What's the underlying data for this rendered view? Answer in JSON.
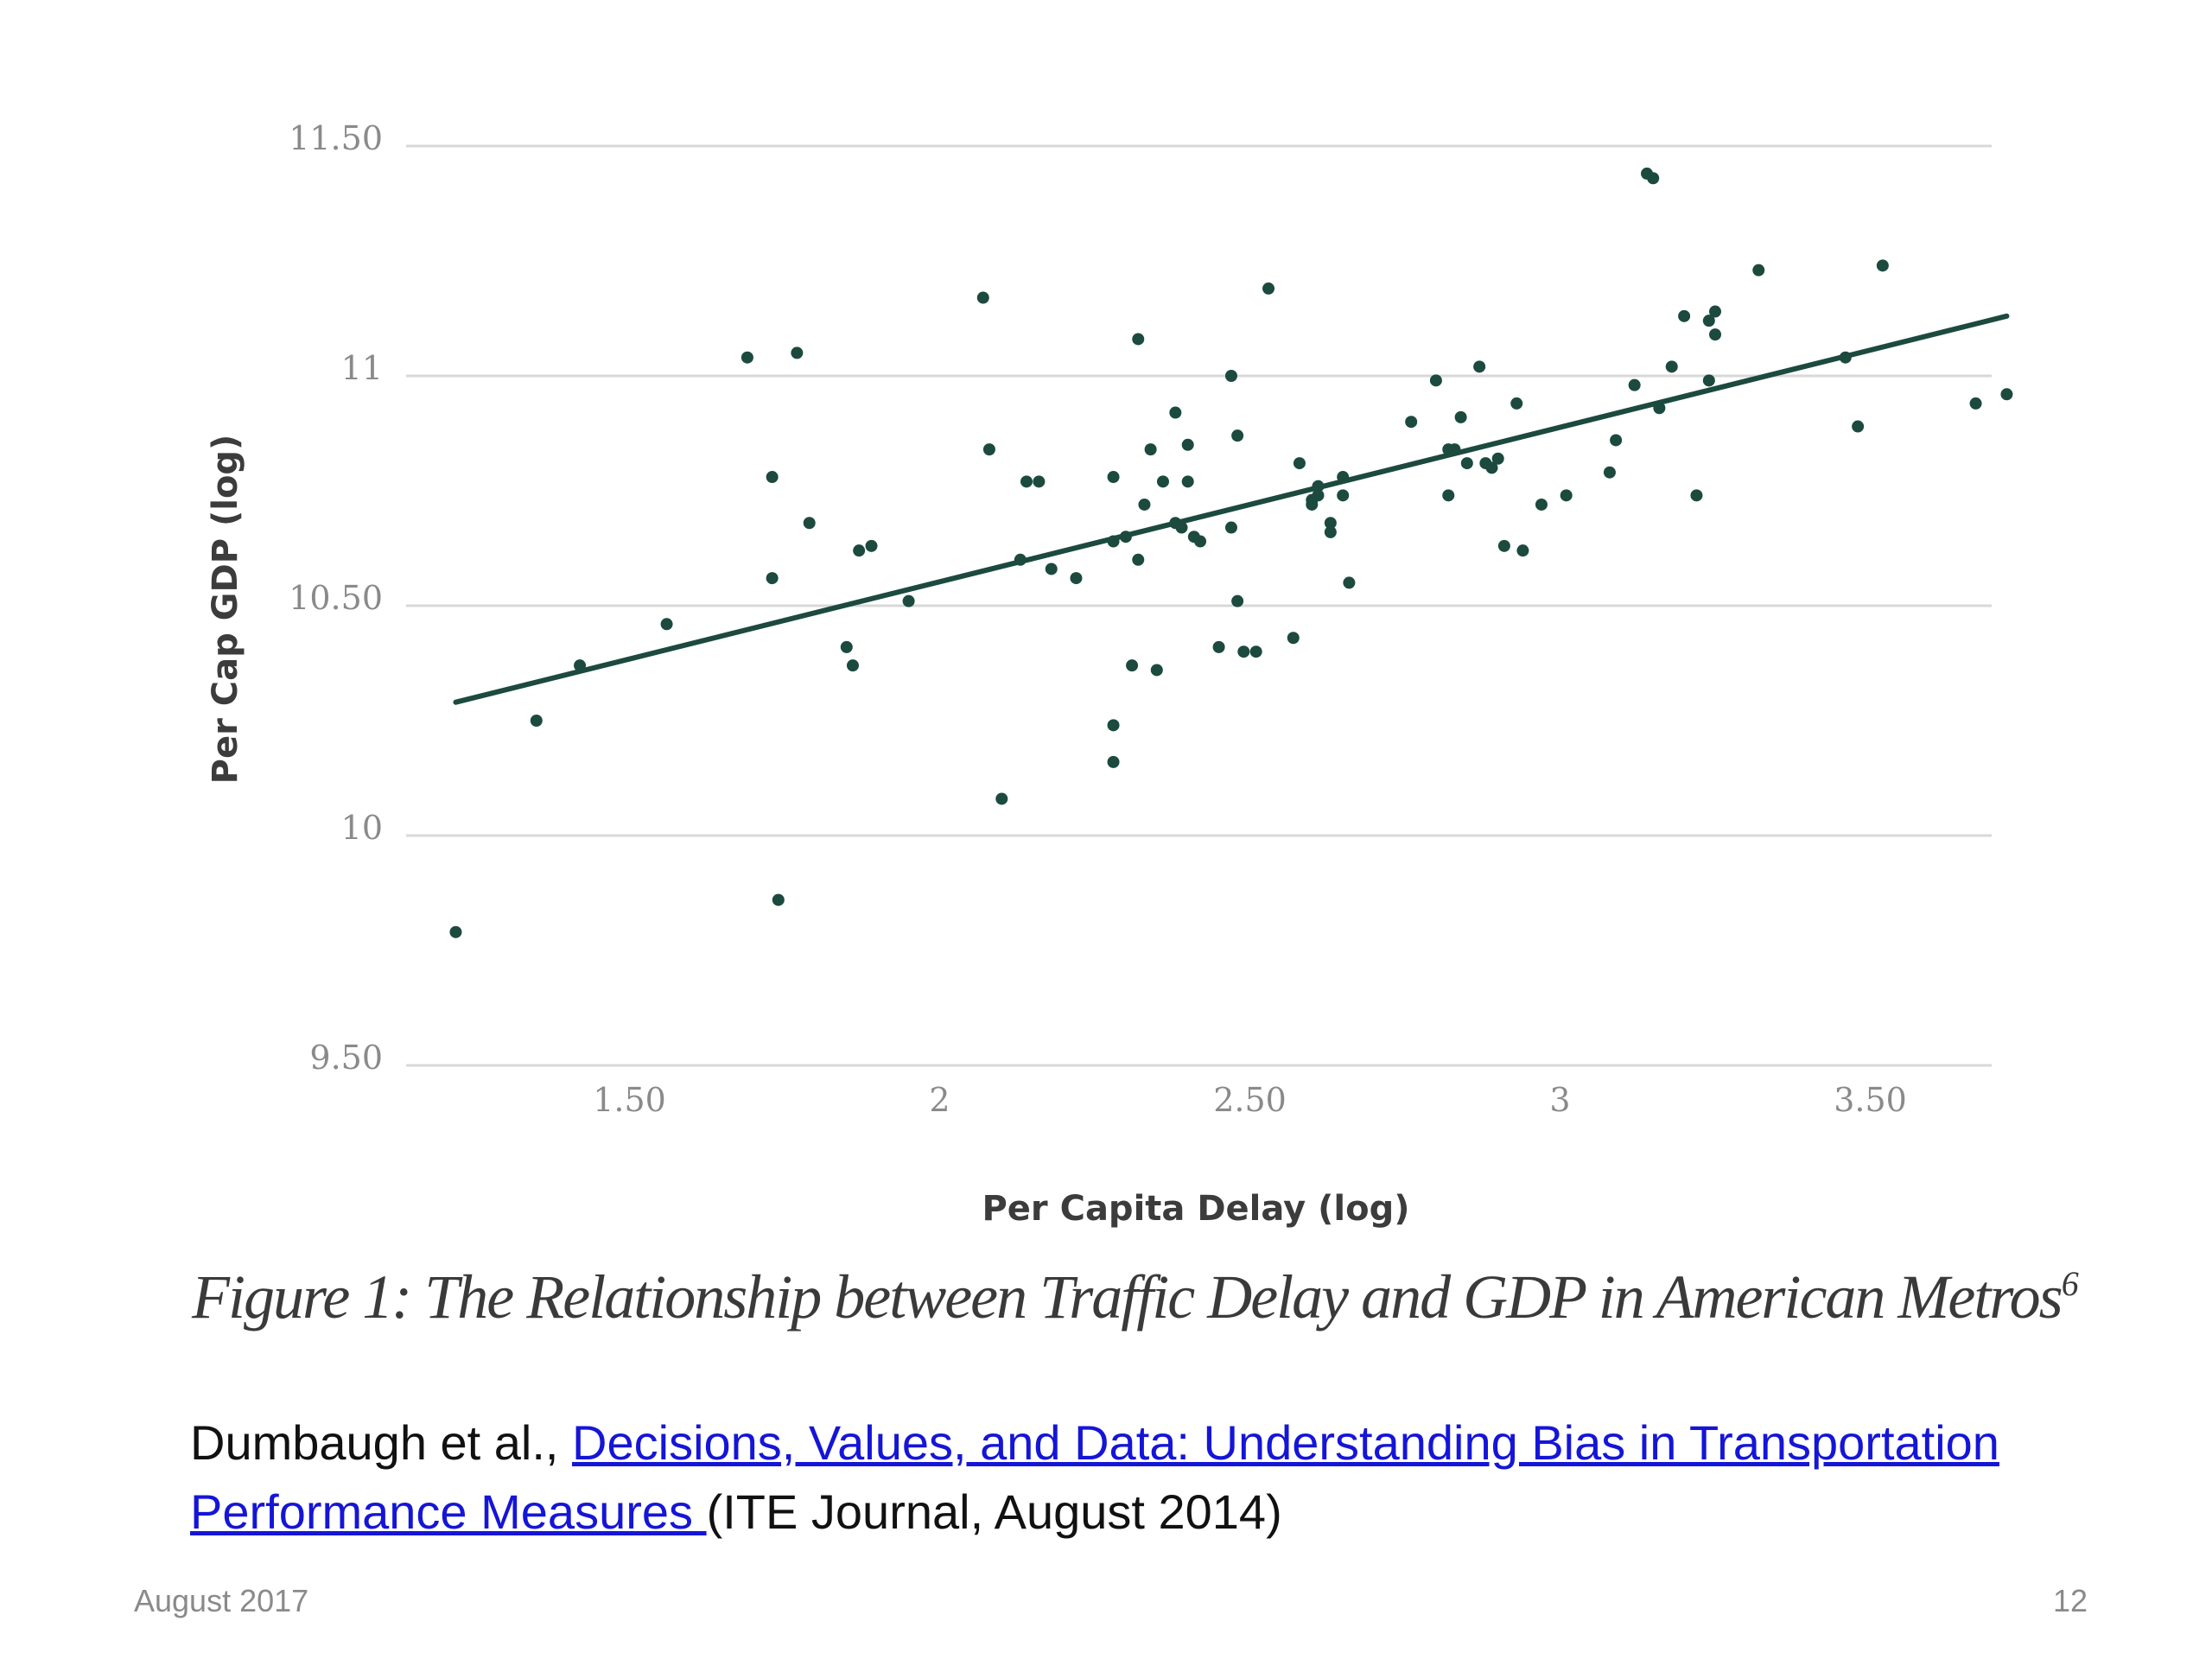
{
  "chart_data": {
    "type": "scatter",
    "title": "",
    "xlabel": "Per Capita Delay (log)",
    "ylabel": "Per Cap GDP (log)",
    "xlim": [
      1.2,
      3.75
    ],
    "ylim": [
      9.5,
      11.5
    ],
    "x_ticks": [
      {
        "value": 1.5,
        "label": "1.50"
      },
      {
        "value": 2.0,
        "label": "2"
      },
      {
        "value": 2.5,
        "label": "2.50"
      },
      {
        "value": 3.0,
        "label": "3"
      },
      {
        "value": 3.5,
        "label": "3.50"
      }
    ],
    "y_ticks": [
      {
        "value": 9.5,
        "label": "9.50"
      },
      {
        "value": 10.0,
        "label": "10"
      },
      {
        "value": 10.5,
        "label": "10.50"
      },
      {
        "value": 11.0,
        "label": "11"
      },
      {
        "value": 11.5,
        "label": "11.50"
      }
    ],
    "grid": "horizontal",
    "trendline": {
      "x": [
        1.22,
        3.72
      ],
      "y": [
        10.29,
        11.13
      ]
    },
    "colors": {
      "points": "#1c4a3e",
      "trendline": "#1c4a3e",
      "grid": "#d8d8d8"
    },
    "series": [
      {
        "points": [
          [
            1.22,
            9.79
          ],
          [
            1.35,
            10.25
          ],
          [
            1.42,
            10.37
          ],
          [
            1.56,
            10.46
          ],
          [
            1.69,
            11.04
          ],
          [
            1.77,
            11.05
          ],
          [
            1.73,
            10.78
          ],
          [
            1.73,
            10.56
          ],
          [
            1.79,
            10.68
          ],
          [
            1.74,
            9.86
          ],
          [
            1.85,
            10.41
          ],
          [
            1.86,
            10.37
          ],
          [
            1.87,
            10.62
          ],
          [
            1.89,
            10.63
          ],
          [
            1.95,
            10.51
          ],
          [
            2.07,
            11.17
          ],
          [
            2.08,
            10.84
          ],
          [
            2.1,
            10.08
          ],
          [
            2.14,
            10.77
          ],
          [
            2.16,
            10.77
          ],
          [
            2.13,
            10.6
          ],
          [
            2.18,
            10.58
          ],
          [
            2.22,
            10.56
          ],
          [
            2.28,
            10.24
          ],
          [
            2.28,
            10.16
          ],
          [
            2.28,
            10.78
          ],
          [
            2.28,
            10.64
          ],
          [
            2.3,
            10.65
          ],
          [
            2.31,
            10.37
          ],
          [
            2.32,
            10.6
          ],
          [
            2.32,
            11.08
          ],
          [
            2.33,
            10.72
          ],
          [
            2.34,
            10.84
          ],
          [
            2.35,
            10.36
          ],
          [
            2.36,
            10.77
          ],
          [
            2.38,
            10.92
          ],
          [
            2.38,
            10.68
          ],
          [
            2.39,
            10.67
          ],
          [
            2.4,
            10.77
          ],
          [
            2.4,
            10.85
          ],
          [
            2.41,
            10.65
          ],
          [
            2.42,
            10.64
          ],
          [
            2.45,
            10.41
          ],
          [
            2.47,
            10.67
          ],
          [
            2.47,
            11.0
          ],
          [
            2.48,
            10.87
          ],
          [
            2.48,
            10.51
          ],
          [
            2.49,
            10.4
          ],
          [
            2.51,
            10.4
          ],
          [
            2.53,
            11.19
          ],
          [
            2.57,
            10.43
          ],
          [
            2.58,
            10.81
          ],
          [
            2.6,
            10.73
          ],
          [
            2.6,
            10.72
          ],
          [
            2.61,
            10.76
          ],
          [
            2.61,
            10.74
          ],
          [
            2.63,
            10.68
          ],
          [
            2.63,
            10.66
          ],
          [
            2.65,
            10.78
          ],
          [
            2.65,
            10.74
          ],
          [
            2.66,
            10.55
          ],
          [
            2.76,
            10.9
          ],
          [
            2.8,
            10.99
          ],
          [
            2.82,
            10.84
          ],
          [
            2.82,
            10.74
          ],
          [
            2.83,
            10.84
          ],
          [
            2.84,
            10.91
          ],
          [
            2.85,
            10.81
          ],
          [
            2.87,
            11.02
          ],
          [
            2.88,
            10.81
          ],
          [
            2.89,
            10.8
          ],
          [
            2.9,
            10.82
          ],
          [
            2.91,
            10.63
          ],
          [
            2.93,
            10.94
          ],
          [
            2.94,
            10.62
          ],
          [
            2.97,
            10.72
          ],
          [
            3.01,
            10.74
          ],
          [
            3.08,
            10.79
          ],
          [
            3.09,
            10.86
          ],
          [
            3.12,
            10.98
          ],
          [
            3.15,
            11.43
          ],
          [
            3.14,
            11.44
          ],
          [
            3.16,
            10.93
          ],
          [
            3.18,
            11.02
          ],
          [
            3.2,
            11.13
          ],
          [
            3.22,
            10.74
          ],
          [
            3.24,
            11.12
          ],
          [
            3.25,
            11.14
          ],
          [
            3.25,
            11.09
          ],
          [
            3.24,
            10.99
          ],
          [
            3.32,
            11.23
          ],
          [
            3.46,
            11.04
          ],
          [
            3.48,
            10.89
          ],
          [
            3.52,
            11.24
          ],
          [
            3.67,
            10.94
          ],
          [
            3.72,
            10.96
          ]
        ]
      }
    ]
  },
  "caption": {
    "text": "Figure 1: The Relationship between Traffic Delay and GDP in American Metros",
    "superscript": "6"
  },
  "citation": {
    "prefix": "Dumbaugh et al., ",
    "link_text": "Decisions, Values, and Data: Understanding Bias in Transportation Performance Measures ",
    "suffix": "(ITE Journal, August 2014)"
  },
  "footer": {
    "date": "August 2017",
    "page": "12"
  }
}
